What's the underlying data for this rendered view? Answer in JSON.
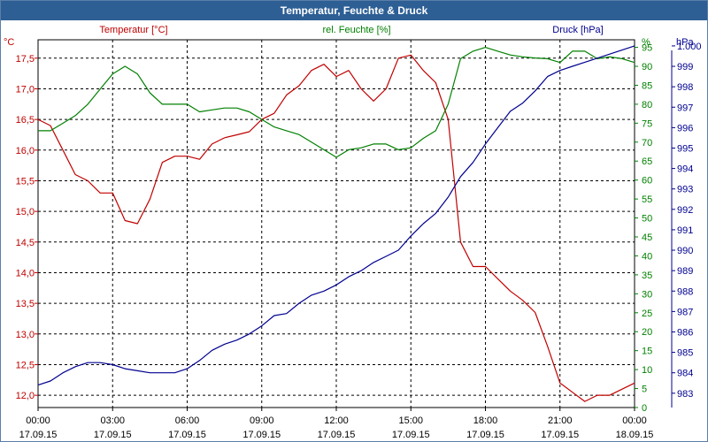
{
  "window": {
    "title": "Temperatur, Feuchte & Druck"
  },
  "colors": {
    "temperature": "#c00000",
    "humidity": "#008000",
    "pressure": "#000090",
    "grid": "#000000",
    "title_bar": "#2d5f95"
  },
  "chart_data": {
    "type": "line",
    "title": "Temperatur, Feuchte & Druck",
    "grid": true,
    "x_ticks": [
      {
        "time": "00:00",
        "date": "17.09.15"
      },
      {
        "time": "03:00",
        "date": "17.09.15"
      },
      {
        "time": "06:00",
        "date": "17.09.15"
      },
      {
        "time": "09:00",
        "date": "17.09.15"
      },
      {
        "time": "12:00",
        "date": "17.09.15"
      },
      {
        "time": "15:00",
        "date": "17.09.15"
      },
      {
        "time": "18:00",
        "date": "17.09.15"
      },
      {
        "time": "21:00",
        "date": "17.09.15"
      },
      {
        "time": "00:00",
        "date": "18.09.15"
      }
    ],
    "xlim": [
      "17.09.15 00:00",
      "18.09.15 00:00"
    ],
    "axes": {
      "temperature": {
        "unit_label": "°C",
        "legend": "Temperatur [°C]",
        "range": [
          11.8,
          17.8
        ],
        "ticks": [
          "12,0",
          "12,5",
          "13,0",
          "13,5",
          "14,0",
          "14,5",
          "15,0",
          "15,5",
          "16,0",
          "16,5",
          "17,0",
          "17,5"
        ],
        "tick_values": [
          12,
          12.5,
          13,
          13.5,
          14,
          14.5,
          15,
          15.5,
          16,
          16.5,
          17,
          17.5
        ]
      },
      "humidity": {
        "unit_label": "%",
        "legend": "rel. Feuchte [%]",
        "range": [
          0,
          97
        ],
        "ticks": [
          "0",
          "5",
          "10",
          "15",
          "20",
          "25",
          "30",
          "35",
          "40",
          "45",
          "50",
          "55",
          "60",
          "65",
          "70",
          "75",
          "80",
          "85",
          "90",
          "95"
        ],
        "tick_values": [
          0,
          5,
          10,
          15,
          20,
          25,
          30,
          35,
          40,
          45,
          50,
          55,
          60,
          65,
          70,
          75,
          80,
          85,
          90,
          95
        ]
      },
      "pressure": {
        "unit_label": "hPa",
        "legend": "Druck [hPa]",
        "range": [
          982.3,
          1000.3
        ],
        "ticks": [
          "983",
          "984",
          "985",
          "986",
          "987",
          "988",
          "989",
          "990",
          "991",
          "992",
          "993",
          "994",
          "995",
          "996",
          "997",
          "998",
          "999",
          "1.000"
        ],
        "tick_values": [
          983,
          984,
          985,
          986,
          987,
          988,
          989,
          990,
          991,
          992,
          993,
          994,
          995,
          996,
          997,
          998,
          999,
          1000
        ]
      }
    },
    "series": [
      {
        "name": "Temperatur [°C]",
        "axis": "temperature",
        "color": "#c00000",
        "x_hours": [
          0,
          0.5,
          1,
          1.5,
          2,
          2.5,
          3,
          3.5,
          4,
          4.5,
          5,
          5.5,
          6,
          6.5,
          7,
          7.5,
          8,
          8.5,
          9,
          9.5,
          10,
          10.5,
          11,
          11.5,
          12,
          12.5,
          13,
          13.5,
          14,
          14.5,
          15,
          15.5,
          16,
          16.5,
          17,
          17.5,
          18,
          18.5,
          19,
          19.5,
          20,
          20.5,
          21,
          21.5,
          22,
          22.5,
          23,
          23.5,
          24
        ],
        "values": [
          16.5,
          16.4,
          16.0,
          15.6,
          15.5,
          15.3,
          15.3,
          14.85,
          14.8,
          15.2,
          15.8,
          15.9,
          15.9,
          15.85,
          16.1,
          16.2,
          16.25,
          16.3,
          16.5,
          16.6,
          16.9,
          17.05,
          17.3,
          17.4,
          17.2,
          17.3,
          17.0,
          16.8,
          17.0,
          17.5,
          17.55,
          17.3,
          17.1,
          16.5,
          14.5,
          14.1,
          14.1,
          13.9,
          13.7,
          13.55,
          13.35,
          12.8,
          12.2,
          12.05,
          11.9,
          12.0,
          12.0,
          12.1,
          12.2
        ]
      },
      {
        "name": "rel. Feuchte [%]",
        "axis": "humidity",
        "color": "#008000",
        "x_hours": [
          0,
          0.5,
          1,
          1.5,
          2,
          2.5,
          3,
          3.5,
          4,
          4.5,
          5,
          5.5,
          6,
          6.5,
          7,
          7.5,
          8,
          8.5,
          9,
          9.5,
          10,
          10.5,
          11,
          11.5,
          12,
          12.5,
          13,
          13.5,
          14,
          14.5,
          15,
          15.5,
          16,
          16.5,
          17,
          17.5,
          18,
          18.5,
          19,
          19.5,
          20,
          20.5,
          21,
          21.5,
          22,
          22.5,
          23,
          23.5,
          24
        ],
        "values": [
          73,
          73,
          75,
          77,
          80,
          84,
          88,
          90,
          88,
          83,
          80,
          80,
          80,
          78,
          78.5,
          79,
          79,
          78,
          76,
          74,
          73,
          72,
          70,
          68,
          66,
          68,
          68.5,
          69.5,
          69.5,
          68,
          68.5,
          71,
          73,
          80,
          92,
          94,
          95,
          94,
          93,
          92.5,
          92.2,
          92,
          91,
          94,
          94,
          92,
          92.5,
          92,
          91
        ]
      },
      {
        "name": "Druck [hPa]",
        "axis": "pressure",
        "color": "#000090",
        "x_hours": [
          0,
          0.5,
          1,
          1.5,
          2,
          2.5,
          3,
          3.5,
          4,
          4.5,
          5,
          5.5,
          6,
          6.5,
          7,
          7.5,
          8,
          8.5,
          9,
          9.5,
          10,
          10.5,
          11,
          11.5,
          12,
          12.5,
          13,
          13.5,
          14,
          14.5,
          15,
          15.5,
          16,
          16.5,
          17,
          17.5,
          18,
          18.5,
          19,
          19.5,
          20,
          20.5,
          21,
          21.5,
          22,
          22.5,
          23,
          23.5,
          24
        ],
        "values": [
          983.4,
          983.6,
          984.0,
          984.3,
          984.5,
          984.5,
          984.4,
          984.2,
          984.1,
          984.0,
          984.0,
          984.0,
          984.2,
          984.6,
          985.1,
          985.4,
          985.6,
          985.9,
          986.3,
          986.8,
          986.9,
          987.4,
          987.8,
          988.0,
          988.3,
          988.7,
          989.0,
          989.4,
          989.7,
          990.0,
          990.7,
          991.3,
          991.8,
          992.6,
          993.6,
          994.3,
          995.2,
          996.0,
          996.8,
          997.2,
          997.8,
          998.5,
          998.8,
          999.0,
          999.2,
          999.4,
          999.6,
          999.8,
          1000.0
        ]
      }
    ]
  }
}
